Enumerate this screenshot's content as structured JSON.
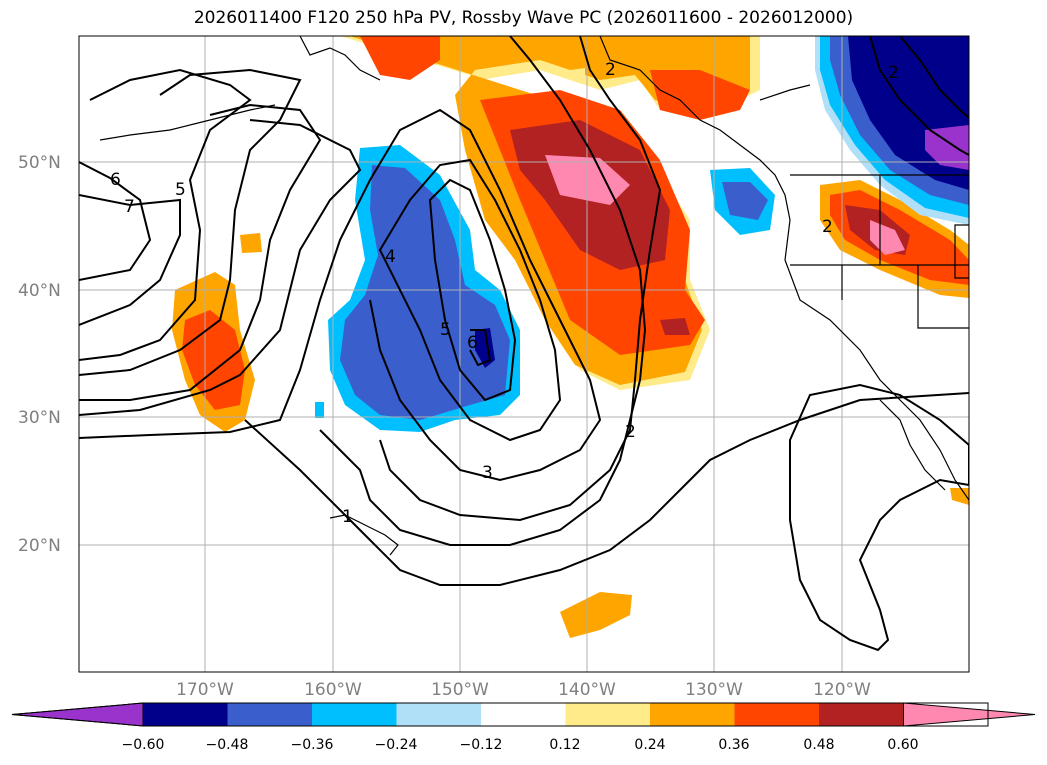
{
  "title": "2026011400 F120 250 hPa PV, Rossby Wave PC (2026011600 - 2026012000)",
  "lat_labels": [
    "50°N",
    "40°N",
    "30°N",
    "20°N"
  ],
  "lon_labels": [
    "170°W",
    "160°W",
    "150°W",
    "140°W",
    "130°W",
    "120°W"
  ],
  "contour_labels": [
    "6",
    "7",
    "5",
    "4",
    "5",
    "6",
    "3",
    "2",
    "2",
    "1",
    "2",
    "2"
  ],
  "colorbar": {
    "ticks": [
      "−0.60",
      "−0.48",
      "−0.36",
      "−0.24",
      "−0.12",
      "0.12",
      "0.24",
      "0.36",
      "0.48",
      "0.60"
    ],
    "colors": [
      "#9933cc",
      "#00008b",
      "#3a5fcd",
      "#00bfff",
      "#b0e0f8",
      "#ffffff",
      "#ffeb8a",
      "#ffa500",
      "#ff4500",
      "#b22222",
      "#ff88b0"
    ]
  }
}
